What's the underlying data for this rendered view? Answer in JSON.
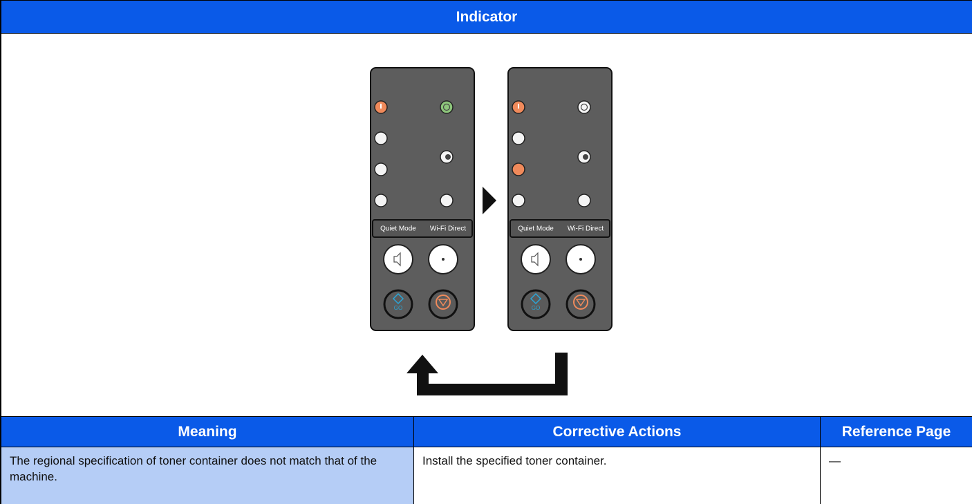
{
  "indicator": {
    "title": "Indicator",
    "panels": [
      {
        "quiet_mode": "Quiet Mode",
        "wifi_direct": "Wi-Fi Direct",
        "go": "GO"
      },
      {
        "quiet_mode": "Quiet Mode",
        "wifi_direct": "Wi-Fi Direct",
        "go": "GO"
      }
    ]
  },
  "table": {
    "headers": [
      "Meaning",
      "Corrective Actions",
      "Reference Page"
    ],
    "rows": [
      [
        "The regional specification of toner container does not match that of the machine.",
        "Install the specified toner container.",
        "—"
      ]
    ]
  }
}
